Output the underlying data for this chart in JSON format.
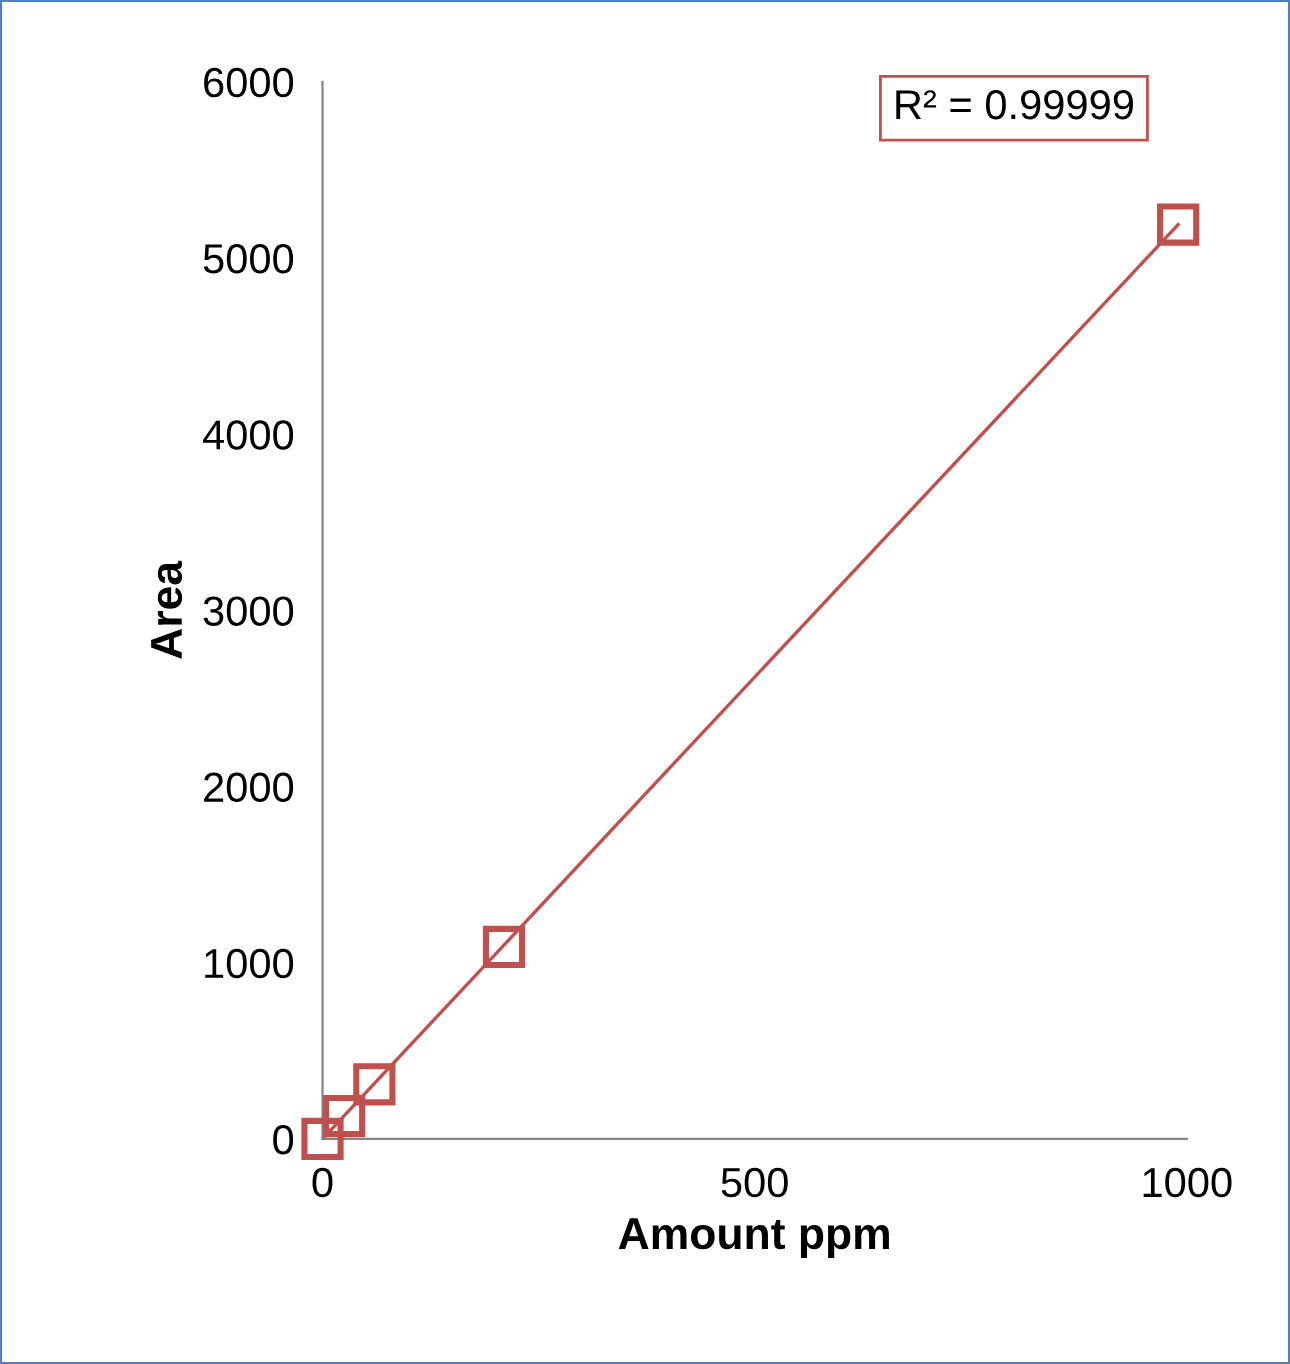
{
  "chart_data": {
    "type": "scatter",
    "xlabel": "Amount ppm",
    "ylabel": "Area",
    "series": [
      {
        "color": "#c0504d",
        "x": [
          0,
          25,
          60,
          210,
          990
        ],
        "values": [
          0,
          130,
          310,
          1090,
          5190
        ],
        "marker": "square"
      },
      {
        "type": "line",
        "color": "#c0504d",
        "x": [
          0,
          990
        ],
        "values": [
          0,
          5190
        ],
        "marker": "none"
      }
    ],
    "annotations": [
      "R² = 0.99999"
    ],
    "xlim": [
      0,
      1000
    ],
    "xticks": [
      0,
      500,
      1000
    ],
    "ylim": [
      0,
      6000
    ],
    "yticks": [
      0,
      1000,
      2000,
      3000,
      4000,
      5000,
      6000
    ],
    "grid": false,
    "legend": false
  }
}
